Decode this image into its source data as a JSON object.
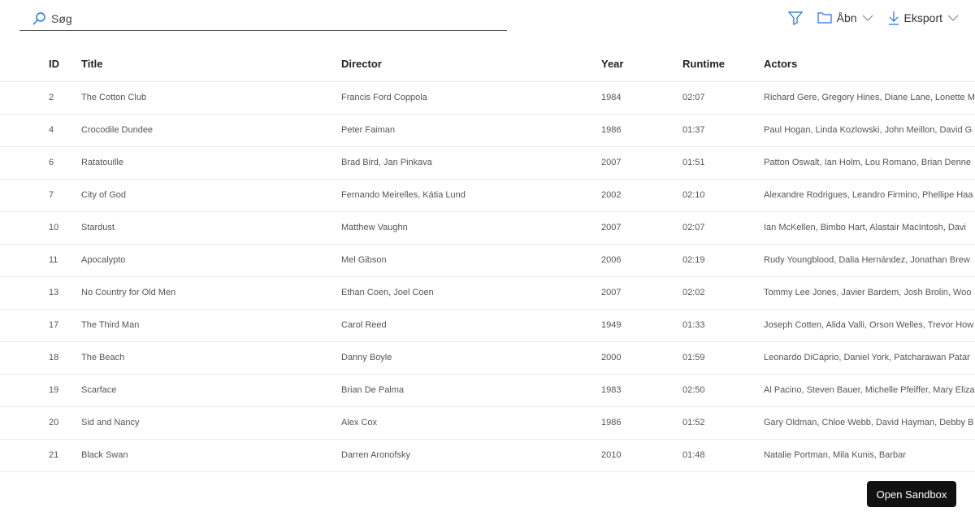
{
  "search": {
    "placeholder": "Søg"
  },
  "toolbar": {
    "open_label": "Åbn",
    "export_label": "Eksport",
    "accent": "#1a73e8"
  },
  "table": {
    "headers": [
      "ID",
      "Title",
      "Director",
      "Year",
      "Runtime",
      "Actors"
    ],
    "rows": [
      [
        "2",
        "The Cotton Club",
        "Francis Ford Coppola",
        "1984",
        "02:07",
        "Richard Gere, Gregory Hines, Diane Lane, Lonette M"
      ],
      [
        "4",
        "Crocodile Dundee",
        "Peter Faiman",
        "1986",
        "01:37",
        "Paul Hogan, Linda Kozlowski, John Meillon, David G"
      ],
      [
        "6",
        "Ratatouille",
        "Brad Bird, Jan Pinkava",
        "2007",
        "01:51",
        "Patton Oswalt, Ian Holm, Lou Romano, Brian Denne"
      ],
      [
        "7",
        "City of God",
        "Fernando Meirelles, Kátia Lund",
        "2002",
        "02:10",
        "Alexandre Rodrigues, Leandro Firmino, Phellipe Haa"
      ],
      [
        "10",
        "Stardust",
        "Matthew Vaughn",
        "2007",
        "02:07",
        "Ian McKellen, Bimbo Hart, Alastair MacIntosh, Davi"
      ],
      [
        "11",
        "Apocalypto",
        "Mel Gibson",
        "2006",
        "02:19",
        "Rudy Youngblood, Dalia Hernández, Jonathan Brew"
      ],
      [
        "13",
        "No Country for Old Men",
        "Ethan Coen, Joel Coen",
        "2007",
        "02:02",
        "Tommy Lee Jones, Javier Bardem, Josh Brolin, Woo"
      ],
      [
        "17",
        "The Third Man",
        "Carol Reed",
        "1949",
        "01:33",
        "Joseph Cotten, Alida Valli, Orson Welles, Trevor How"
      ],
      [
        "18",
        "The Beach",
        "Danny Boyle",
        "2000",
        "01:59",
        "Leonardo DiCaprio, Daniel York, Patcharawan Patar"
      ],
      [
        "19",
        "Scarface",
        "Brian De Palma",
        "1983",
        "02:50",
        "Al Pacino, Steven Bauer, Michelle Pfeiffer, Mary Eliza"
      ],
      [
        "20",
        "Sid and Nancy",
        "Alex Cox",
        "1986",
        "01:52",
        "Gary Oldman, Chloe Webb, David Hayman, Debby B"
      ],
      [
        "21",
        "Black Swan",
        "Darren Aronofsky",
        "2010",
        "01:48",
        "Natalie Portman, Mila Kunis, Barbar"
      ]
    ]
  },
  "sandbox": {
    "label": "Open Sandbox"
  }
}
